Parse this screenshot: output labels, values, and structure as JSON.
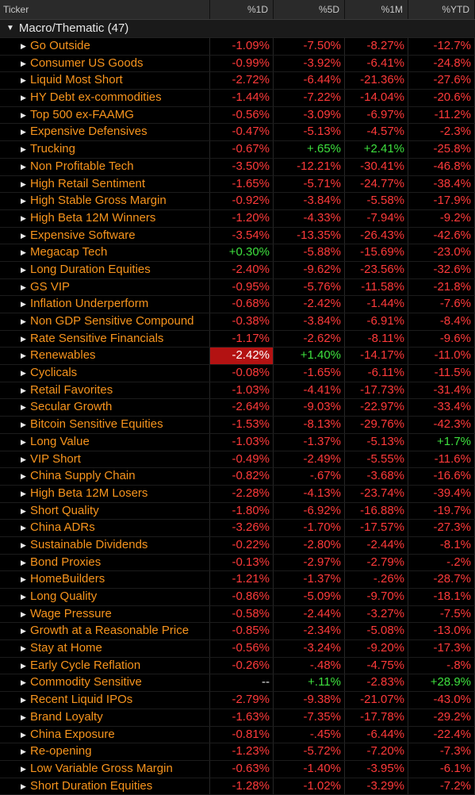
{
  "header": {
    "ticker": "Ticker",
    "col1": "%1D",
    "col2": "%5D",
    "col3": "%1M",
    "col4": "%YTD"
  },
  "group": {
    "label": "Macro/Thematic (47)",
    "caret_icon": "caret-down-icon"
  },
  "rows": [
    {
      "name": "Go Outside",
      "d1": "-1.09%",
      "d5": "-7.50%",
      "m1": "-8.27%",
      "ytd": "-12.7%"
    },
    {
      "name": "Consumer US Goods",
      "d1": "-0.99%",
      "d5": "-3.92%",
      "m1": "-6.41%",
      "ytd": "-24.8%"
    },
    {
      "name": "Liquid Most Short",
      "d1": "-2.72%",
      "d5": "-6.44%",
      "m1": "-21.36%",
      "ytd": "-27.6%"
    },
    {
      "name": "HY Debt ex-commodities",
      "d1": "-1.44%",
      "d5": "-7.22%",
      "m1": "-14.04%",
      "ytd": "-20.6%"
    },
    {
      "name": "Top 500 ex-FAAMG",
      "d1": "-0.56%",
      "d5": "-3.09%",
      "m1": "-6.97%",
      "ytd": "-11.2%"
    },
    {
      "name": "Expensive Defensives",
      "d1": "-0.47%",
      "d5": "-5.13%",
      "m1": "-4.57%",
      "ytd": "-2.3%"
    },
    {
      "name": "Trucking",
      "d1": "-0.67%",
      "d5": "+.65%",
      "m1": "+2.41%",
      "ytd": "-25.8%"
    },
    {
      "name": "Non Profitable Tech",
      "d1": "-3.50%",
      "d5": "-12.21%",
      "m1": "-30.41%",
      "ytd": "-46.8%"
    },
    {
      "name": "High Retail Sentiment",
      "d1": "-1.65%",
      "d5": "-5.71%",
      "m1": "-24.77%",
      "ytd": "-38.4%"
    },
    {
      "name": "High Stable Gross Margin",
      "d1": "-0.92%",
      "d5": "-3.84%",
      "m1": "-5.58%",
      "ytd": "-17.9%"
    },
    {
      "name": "High Beta 12M Winners",
      "d1": "-1.20%",
      "d5": "-4.33%",
      "m1": "-7.94%",
      "ytd": "-9.2%"
    },
    {
      "name": "Expensive Software",
      "d1": "-3.54%",
      "d5": "-13.35%",
      "m1": "-26.43%",
      "ytd": "-42.6%"
    },
    {
      "name": "Megacap Tech",
      "d1": "+0.30%",
      "d5": "-5.88%",
      "m1": "-15.69%",
      "ytd": "-23.0%"
    },
    {
      "name": "Long Duration Equities",
      "d1": "-2.40%",
      "d5": "-9.62%",
      "m1": "-23.56%",
      "ytd": "-32.6%"
    },
    {
      "name": "GS VIP",
      "d1": "-0.95%",
      "d5": "-5.76%",
      "m1": "-11.58%",
      "ytd": "-21.8%"
    },
    {
      "name": "Inflation Underperform",
      "d1": "-0.68%",
      "d5": "-2.42%",
      "m1": "-1.44%",
      "ytd": "-7.6%"
    },
    {
      "name": "Non GDP Sensitive Compound",
      "d1": "-0.38%",
      "d5": "-3.84%",
      "m1": "-6.91%",
      "ytd": "-8.4%"
    },
    {
      "name": "Rate Sensitive Financials",
      "d1": "-1.17%",
      "d5": "-2.62%",
      "m1": "-8.11%",
      "ytd": "-9.6%"
    },
    {
      "name": "Renewables",
      "d1": "-2.42%",
      "d5": "+1.40%",
      "m1": "-14.17%",
      "ytd": "-11.0%",
      "highlight": true
    },
    {
      "name": "Cyclicals",
      "d1": "-0.08%",
      "d5": "-1.65%",
      "m1": "-6.11%",
      "ytd": "-11.5%"
    },
    {
      "name": "Retail Favorites",
      "d1": "-1.03%",
      "d5": "-4.41%",
      "m1": "-17.73%",
      "ytd": "-31.4%"
    },
    {
      "name": "Secular Growth",
      "d1": "-2.64%",
      "d5": "-9.03%",
      "m1": "-22.97%",
      "ytd": "-33.4%"
    },
    {
      "name": "Bitcoin Sensitive Equities",
      "d1": "-1.53%",
      "d5": "-8.13%",
      "m1": "-29.76%",
      "ytd": "-42.3%"
    },
    {
      "name": "Long Value",
      "d1": "-1.03%",
      "d5": "-1.37%",
      "m1": "-5.13%",
      "ytd": "+1.7%"
    },
    {
      "name": "VIP Short",
      "d1": "-0.49%",
      "d5": "-2.49%",
      "m1": "-5.55%",
      "ytd": "-11.6%"
    },
    {
      "name": "China Supply Chain",
      "d1": "-0.82%",
      "d5": "-.67%",
      "m1": "-3.68%",
      "ytd": "-16.6%"
    },
    {
      "name": "High Beta 12M Losers",
      "d1": "-2.28%",
      "d5": "-4.13%",
      "m1": "-23.74%",
      "ytd": "-39.4%"
    },
    {
      "name": "Short Quality",
      "d1": "-1.80%",
      "d5": "-6.92%",
      "m1": "-16.88%",
      "ytd": "-19.7%"
    },
    {
      "name": "China ADRs",
      "d1": "-3.26%",
      "d5": "-1.70%",
      "m1": "-17.57%",
      "ytd": "-27.3%"
    },
    {
      "name": "Sustainable Dividends",
      "d1": "-0.22%",
      "d5": "-2.80%",
      "m1": "-2.44%",
      "ytd": "-8.1%"
    },
    {
      "name": "Bond Proxies",
      "d1": "-0.13%",
      "d5": "-2.97%",
      "m1": "-2.79%",
      "ytd": "-.2%"
    },
    {
      "name": "HomeBuilders",
      "d1": "-1.21%",
      "d5": "-1.37%",
      "m1": "-.26%",
      "ytd": "-28.7%"
    },
    {
      "name": "Long Quality",
      "d1": "-0.86%",
      "d5": "-5.09%",
      "m1": "-9.70%",
      "ytd": "-18.1%"
    },
    {
      "name": "Wage Pressure",
      "d1": "-0.58%",
      "d5": "-2.44%",
      "m1": "-3.27%",
      "ytd": "-7.5%"
    },
    {
      "name": "Growth at a Reasonable Price",
      "d1": "-0.85%",
      "d5": "-2.34%",
      "m1": "-5.08%",
      "ytd": "-13.0%"
    },
    {
      "name": "Stay at Home",
      "d1": "-0.56%",
      "d5": "-3.24%",
      "m1": "-9.20%",
      "ytd": "-17.3%"
    },
    {
      "name": "Early Cycle Reflation",
      "d1": "-0.26%",
      "d5": "-.48%",
      "m1": "-4.75%",
      "ytd": "-.8%"
    },
    {
      "name": "Commodity Sensitive",
      "d1": "--",
      "d5": "+.11%",
      "m1": "-2.83%",
      "ytd": "+28.9%"
    },
    {
      "name": "Recent Liquid IPOs",
      "d1": "-2.79%",
      "d5": "-9.38%",
      "m1": "-21.07%",
      "ytd": "-43.0%"
    },
    {
      "name": "Brand Loyalty",
      "d1": "-1.63%",
      "d5": "-7.35%",
      "m1": "-17.78%",
      "ytd": "-29.2%"
    },
    {
      "name": "China Exposure",
      "d1": "-0.81%",
      "d5": "-.45%",
      "m1": "-6.44%",
      "ytd": "-22.4%"
    },
    {
      "name": "Re-opening",
      "d1": "-1.23%",
      "d5": "-5.72%",
      "m1": "-7.20%",
      "ytd": "-7.3%"
    },
    {
      "name": "Low Variable Gross Margin",
      "d1": "-0.63%",
      "d5": "-1.40%",
      "m1": "-3.95%",
      "ytd": "-6.1%"
    },
    {
      "name": "Short Duration Equities",
      "d1": "-1.28%",
      "d5": "-1.02%",
      "m1": "-3.29%",
      "ytd": "-7.2%"
    }
  ],
  "colors": {
    "negative": "#ff3a3a",
    "positive": "#3ee03e",
    "neutral": "#e8e8e8",
    "label": "#f7941d",
    "highlight": "#b31212"
  }
}
